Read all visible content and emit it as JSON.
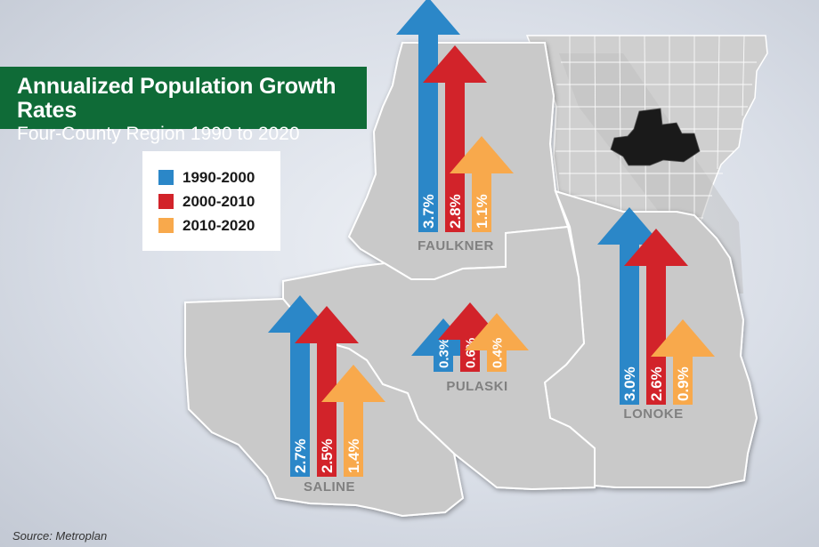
{
  "title": "Annualized Population Growth Rates",
  "subtitle": "Four-County Region 1990 to 2020",
  "source": "Source: Metroplan",
  "colors": {
    "1990-2000": "#2b87c8",
    "2000-2010": "#d2232a",
    "2010-2020": "#f8a94c",
    "title_bg": "#0f6b37",
    "county_fill": "#c9c9c9",
    "county_stroke": "#ffffff",
    "state_fill": "#cfcfcf",
    "region_highlight": "#1a1a1a"
  },
  "legend": [
    {
      "label": "1990-2000",
      "color": "#2b87c8"
    },
    {
      "label": "2000-2010",
      "color": "#d2232a"
    },
    {
      "label": "2010-2020",
      "color": "#f8a94c"
    }
  ],
  "map_data": {
    "type": "choropleth-arrows",
    "periods": [
      "1990-2000",
      "2000-2010",
      "2010-2020"
    ],
    "units": "% per year",
    "counties": [
      {
        "name": "FAULKNER",
        "values": [
          3.7,
          2.8,
          1.1
        ],
        "labels": [
          "3.7%",
          "2.8%",
          "1.1%"
        ]
      },
      {
        "name": "PULASKI",
        "values": [
          0.3,
          0.6,
          0.4
        ],
        "labels": [
          "0.3%",
          "0.6%",
          "0.4%"
        ]
      },
      {
        "name": "LONOKE",
        "values": [
          3.0,
          2.6,
          0.9
        ],
        "labels": [
          "3.0%",
          "2.6%",
          "0.9%"
        ]
      },
      {
        "name": "SALINE",
        "values": [
          2.7,
          2.5,
          1.4
        ],
        "labels": [
          "2.7%",
          "2.5%",
          "1.4%"
        ]
      }
    ],
    "inset": "Arkansas state outline with the four-county region highlighted"
  }
}
